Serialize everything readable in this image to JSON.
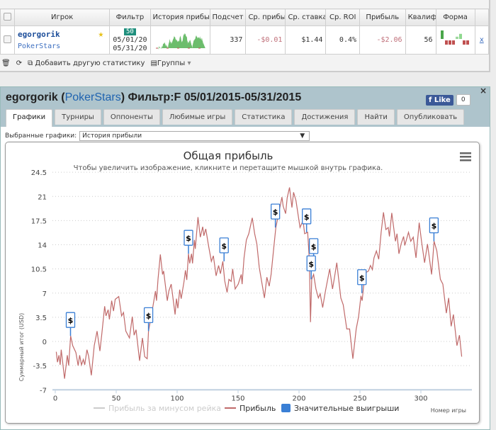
{
  "table": {
    "headers": [
      "Игрок",
      "Фильтр",
      "История прибы",
      "Подсчет",
      "Ср. прибы",
      "Ср. ставка",
      "Ср. ROI",
      "Прибыль",
      "Квалиф",
      "Форма"
    ],
    "row": {
      "player": "egorgorik",
      "site": "PokerStars",
      "filter_badge": "50",
      "date_from": "05/01/20",
      "date_to": "05/31/20",
      "count": "337",
      "avg_profit": "-$0.01",
      "avg_stake": "$1.44",
      "roi": "0.4%",
      "profit": "-$2.06",
      "qual": "56",
      "remove": "x"
    },
    "form": [
      {
        "r": "win",
        "h": 1
      },
      {
        "r": "loss",
        "h": 0.4
      },
      {
        "r": "loss",
        "h": 0.4
      },
      {
        "r": "loss",
        "h": 0.4
      },
      {
        "r": "win",
        "h": 0.2
      },
      {
        "r": "win",
        "h": 0.45
      },
      {
        "r": "loss",
        "h": 0.4
      },
      {
        "r": "loss",
        "h": 0.4
      }
    ]
  },
  "toolbar": {
    "add_stat": "Добавить другую статистику",
    "groups": "Группы"
  },
  "panel": {
    "player": "egorgorik",
    "open": "(",
    "site": "PokerStars",
    "close": ")",
    "filter": "Фильтр:F 05/01/2015-05/31/2015",
    "like": "Like",
    "like_count": "0",
    "close_x": "×",
    "tabs": [
      "Графики",
      "Турниры",
      "Оппоненты",
      "Любимые игры",
      "Статистика",
      "Достижения",
      "Найти",
      "Опубликовать"
    ],
    "select_label": "Выбранные графики:",
    "select_value": "История прибыли"
  },
  "colors": {
    "line": "#c06a6a",
    "marker": "#3a7fd5",
    "rake": "#cccccc"
  },
  "chart_data": {
    "type": "line",
    "title": "Общая прибыль",
    "subtitle": "Чтобы увеличить изображение, кликните и перетащите мышкой внутрь графика.",
    "xlabel": "Номер игры",
    "ylabel": "Суммарный итог (USD)",
    "xlim": [
      0,
      337
    ],
    "ylim": [
      -7,
      24.5
    ],
    "xticks": [
      0,
      50,
      100,
      150,
      200,
      250,
      300
    ],
    "yticks": [
      24.5,
      21,
      17.5,
      14,
      10.5,
      7,
      3.5,
      0,
      -3.5,
      -7
    ],
    "legend": [
      "Прибыль за минусом рейка",
      "Прибыль",
      "Значительные выигрыши"
    ],
    "legend_position": "bottom",
    "series": [
      {
        "name": "Прибыль",
        "points": [
          [
            0.8,
            -1.5
          ],
          [
            1.8,
            -3
          ],
          [
            3,
            -2
          ],
          [
            4,
            -3.4
          ],
          [
            4.9,
            -1.2
          ],
          [
            7.6,
            -5.4
          ],
          [
            9.9,
            -2
          ],
          [
            11,
            -3.5
          ],
          [
            12.6,
            0.8
          ],
          [
            14.3,
            -0.6
          ],
          [
            16.9,
            -1.6
          ],
          [
            18.8,
            -3.5
          ],
          [
            20,
            -2
          ],
          [
            21.5,
            -3.4
          ],
          [
            23,
            -2.6
          ],
          [
            24.2,
            -3.4
          ],
          [
            26,
            -1.2
          ],
          [
            27.3,
            -2.1
          ],
          [
            29.6,
            -4.9
          ],
          [
            32,
            -0.6
          ],
          [
            34.3,
            1.5
          ],
          [
            36.6,
            -1.4
          ],
          [
            38.2,
            1.1
          ],
          [
            40.5,
            5.1
          ],
          [
            41.6,
            3.7
          ],
          [
            43.4,
            4.6
          ],
          [
            44.4,
            3.2
          ],
          [
            46.3,
            5.9
          ],
          [
            47.8,
            4.4
          ],
          [
            49.2,
            6.1
          ],
          [
            52.1,
            6.5
          ],
          [
            54.4,
            3.7
          ],
          [
            56,
            4.2
          ],
          [
            57.9,
            1.5
          ],
          [
            60.9,
            0.5
          ],
          [
            63.2,
            3.6
          ],
          [
            64.7,
            0.9
          ],
          [
            66.3,
            1.7
          ],
          [
            69.2,
            -2.8
          ],
          [
            71.5,
            0.5
          ],
          [
            73.4,
            -2.2
          ],
          [
            75.4,
            -2.5
          ],
          [
            76.5,
            1.5
          ],
          [
            79.3,
            4.2
          ],
          [
            82.2,
            7.3
          ],
          [
            83.1,
            5.9
          ],
          [
            84.3,
            9
          ],
          [
            86.2,
            12.6
          ],
          [
            88,
            9.7
          ],
          [
            88.9,
            10.2
          ],
          [
            91.9,
            5.9
          ],
          [
            93.2,
            7.3
          ],
          [
            95.1,
            8.3
          ],
          [
            98.3,
            3.9
          ],
          [
            99.4,
            6.2
          ],
          [
            100.6,
            4.8
          ],
          [
            102.1,
            7.5
          ],
          [
            103.3,
            6.2
          ],
          [
            105.6,
            8.6
          ],
          [
            106.8,
            10.3
          ],
          [
            107.9,
            8.9
          ],
          [
            109.3,
            12.7
          ],
          [
            110.3,
            11.3
          ],
          [
            111.8,
            12.7
          ],
          [
            112.6,
            11.3
          ],
          [
            114.2,
            14.7
          ],
          [
            114.9,
            13.4
          ],
          [
            117.1,
            18
          ],
          [
            119,
            15.1
          ],
          [
            121,
            16.6
          ],
          [
            121.9,
            15.3
          ],
          [
            123.5,
            16.3
          ],
          [
            125.8,
            13.8
          ],
          [
            128.1,
            11.6
          ],
          [
            129.7,
            12.4
          ],
          [
            132,
            9.5
          ],
          [
            134,
            11
          ],
          [
            135.5,
            9.8
          ],
          [
            137.5,
            11.6
          ],
          [
            139,
            8.8
          ],
          [
            141,
            7.1
          ],
          [
            142.5,
            9
          ],
          [
            144.3,
            8.7
          ],
          [
            145.6,
            10.5
          ],
          [
            147.6,
            7.6
          ],
          [
            150.1,
            8.3
          ],
          [
            152.6,
            9.7
          ],
          [
            153.3,
            8.3
          ],
          [
            154.9,
            12.1
          ],
          [
            156.8,
            14.7
          ],
          [
            158.8,
            15.6
          ],
          [
            161.6,
            17.9
          ],
          [
            163.6,
            15.6
          ],
          [
            165.4,
            14.1
          ],
          [
            167.4,
            10.7
          ],
          [
            169.7,
            8.3
          ],
          [
            171.6,
            6.3
          ],
          [
            173.6,
            9.3
          ],
          [
            175.5,
            8
          ],
          [
            177.1,
            9.7
          ],
          [
            179.4,
            13.8
          ],
          [
            181,
            16.5
          ],
          [
            186,
            20.9
          ],
          [
            187,
            19.6
          ],
          [
            189,
            18.5
          ],
          [
            190.3,
            20.8
          ],
          [
            192.2,
            22.3
          ],
          [
            194.2,
            19.4
          ],
          [
            195.5,
            21.6
          ],
          [
            197.5,
            20.4
          ],
          [
            200.8,
            16.5
          ],
          [
            203.3,
            17.5
          ],
          [
            204.6,
            15.6
          ],
          [
            207.1,
            15.8
          ],
          [
            208.5,
            11.7
          ],
          [
            209.4,
            2.8
          ],
          [
            210.4,
            9
          ],
          [
            212,
            9.7
          ],
          [
            213.9,
            7.6
          ],
          [
            215.9,
            6.3
          ],
          [
            217.4,
            6.9
          ],
          [
            219.4,
            4.9
          ],
          [
            221.7,
            7.3
          ],
          [
            225.2,
            10.5
          ],
          [
            227.5,
            7.6
          ],
          [
            229.1,
            9.3
          ],
          [
            231,
            11.4
          ],
          [
            234.3,
            6.3
          ],
          [
            236.3,
            5.3
          ],
          [
            239.2,
            1.8
          ],
          [
            241.5,
            1.8
          ],
          [
            244.2,
            -2.5
          ],
          [
            246.9,
            1.8
          ],
          [
            248.9,
            3.6
          ],
          [
            250.8,
            6.6
          ],
          [
            251.8,
            5.9
          ],
          [
            253.2,
            8.3
          ],
          [
            255.1,
            10
          ],
          [
            257,
            10.2
          ],
          [
            258.6,
            11
          ],
          [
            260.2,
            10.4
          ],
          [
            261.5,
            12.1
          ],
          [
            263.5,
            13.1
          ],
          [
            265.4,
            11.9
          ],
          [
            267.4,
            15.8
          ],
          [
            269.3,
            18.7
          ],
          [
            271.3,
            16.2
          ],
          [
            273.2,
            16.5
          ],
          [
            274.2,
            15.2
          ],
          [
            276.1,
            18.6
          ],
          [
            279.1,
            14.5
          ],
          [
            280.4,
            15.6
          ],
          [
            282,
            12.7
          ],
          [
            283.9,
            14.2
          ],
          [
            285.8,
            15.2
          ],
          [
            286.8,
            13.9
          ],
          [
            289.8,
            15.8
          ],
          [
            291.7,
            14.5
          ],
          [
            293.7,
            15.1
          ],
          [
            296,
            12.1
          ],
          [
            298.6,
            17.2
          ],
          [
            300.5,
            14.5
          ],
          [
            303,
            11.4
          ],
          [
            305.4,
            14.1
          ],
          [
            308.8,
            9.7
          ],
          [
            310.8,
            14.5
          ],
          [
            313.1,
            13.1
          ],
          [
            316,
            9
          ],
          [
            318,
            8.3
          ],
          [
            320.9,
            4.1
          ],
          [
            322.8,
            6.3
          ],
          [
            324.8,
            2.2
          ],
          [
            326.7,
            3.9
          ],
          [
            329.6,
            -0.6
          ],
          [
            331.6,
            0.9
          ],
          [
            333.5,
            -2.2
          ]
        ]
      }
    ],
    "big_wins": [
      {
        "x": 12.5,
        "y": 0.8,
        "label": "$"
      },
      {
        "x": 76.5,
        "y": 1.5,
        "label": "$"
      },
      {
        "x": 109.3,
        "y": 12.7,
        "label": "$"
      },
      {
        "x": 138.5,
        "y": 11.6,
        "label": "$"
      },
      {
        "x": 180.6,
        "y": 16.5,
        "label": "$"
      },
      {
        "x": 206.2,
        "y": 15.8,
        "label": "$"
      },
      {
        "x": 212,
        "y": 11.5,
        "label": "$"
      },
      {
        "x": 210,
        "y": 9,
        "label": "$"
      },
      {
        "x": 251.6,
        "y": 7,
        "label": "$"
      },
      {
        "x": 310.7,
        "y": 14.5,
        "label": "$"
      }
    ]
  }
}
